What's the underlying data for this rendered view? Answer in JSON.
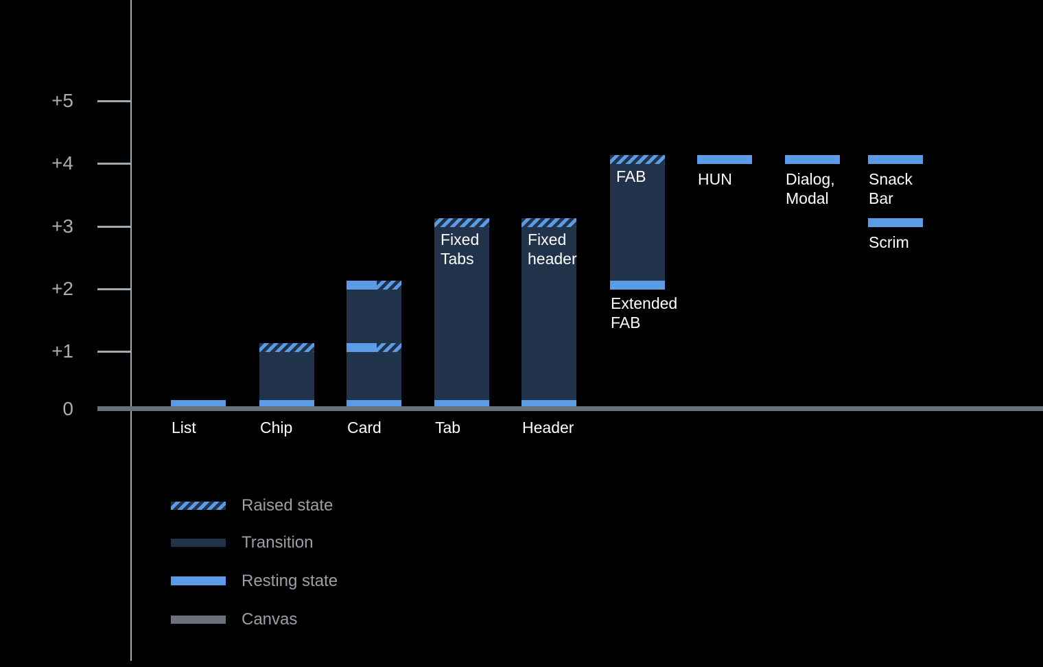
{
  "colors": {
    "background": "#000000",
    "resting_blue": "#5C9CE6",
    "transition_navy": "#20334A",
    "canvas_gray": "#6A717B",
    "grid_dot": "#CDD1D4",
    "axis_gray": "#A3ABB2",
    "ytick_text": "#A9AEB3",
    "legend_text": "#9AA0A5",
    "label_text": "#FFFFFF"
  },
  "chart_data": {
    "type": "bar",
    "title": "",
    "y_axis": {
      "ticks": [
        {
          "label": "+5",
          "value": 5
        },
        {
          "label": "+4",
          "value": 4
        },
        {
          "label": "+3",
          "value": 3
        },
        {
          "label": "+2",
          "value": 2
        },
        {
          "label": "+1",
          "value": 1
        },
        {
          "label": "0",
          "value": 0
        }
      ],
      "gridlines_at": [
        1,
        2,
        3,
        4,
        5
      ],
      "baseline_value": 0
    },
    "categories": [
      "List",
      "Chip",
      "Card",
      "Tab",
      "Header"
    ],
    "bars": [
      {
        "name": "list",
        "column": 0,
        "axis_label": "List",
        "resting": 0,
        "transition_to": null,
        "cap": "none",
        "mid_caps": [],
        "inner_label": "",
        "below_label": ""
      },
      {
        "name": "chip",
        "column": 1,
        "axis_label": "Chip",
        "resting": 0,
        "transition_to": 1,
        "cap": "raised",
        "mid_caps": [],
        "inner_label": "",
        "below_label": ""
      },
      {
        "name": "card",
        "column": 2,
        "axis_label": "Card",
        "resting": 0,
        "transition_to": 2,
        "cap": "split",
        "mid_caps": [
          1
        ],
        "inner_label": "",
        "below_label": ""
      },
      {
        "name": "tab",
        "column": 3,
        "axis_label": "Tab",
        "resting": 0,
        "transition_to": 3,
        "cap": "raised",
        "mid_caps": [],
        "inner_label": "Fixed\nTabs",
        "below_label": ""
      },
      {
        "name": "header",
        "column": 4,
        "axis_label": "Header",
        "resting": 0,
        "transition_to": 3,
        "cap": "raised",
        "mid_caps": [],
        "inner_label": "Fixed\nheader",
        "below_label": ""
      },
      {
        "name": "extended-fab",
        "column": 5,
        "axis_label": "",
        "resting": 2,
        "transition_to": 4,
        "cap": "raised",
        "mid_caps": [],
        "inner_label": "FAB",
        "below_label": "Extended\nFAB"
      },
      {
        "name": "hun",
        "column": 6,
        "axis_label": "",
        "resting": 4,
        "transition_to": null,
        "cap": "none",
        "mid_caps": [],
        "inner_label": "",
        "below_label": "HUN"
      },
      {
        "name": "dialog-modal",
        "column": 7,
        "axis_label": "",
        "resting": 4,
        "transition_to": null,
        "cap": "none",
        "mid_caps": [],
        "inner_label": "",
        "below_label": "Dialog,\nModal"
      },
      {
        "name": "snack-bar",
        "column": 8,
        "axis_label": "",
        "resting": 4,
        "transition_to": null,
        "cap": "none",
        "mid_caps": [],
        "inner_label": "",
        "below_label": "Snack Bar"
      },
      {
        "name": "scrim",
        "column": 8,
        "axis_label": "",
        "resting": 3,
        "transition_to": null,
        "cap": "none",
        "mid_caps": [],
        "inner_label": "",
        "below_label": "Scrim"
      }
    ],
    "legend": [
      {
        "style": "raised",
        "label": "Raised state"
      },
      {
        "style": "transition",
        "label": "Transition"
      },
      {
        "style": "resting",
        "label": "Resting state"
      },
      {
        "style": "canvas",
        "label": "Canvas"
      }
    ]
  }
}
